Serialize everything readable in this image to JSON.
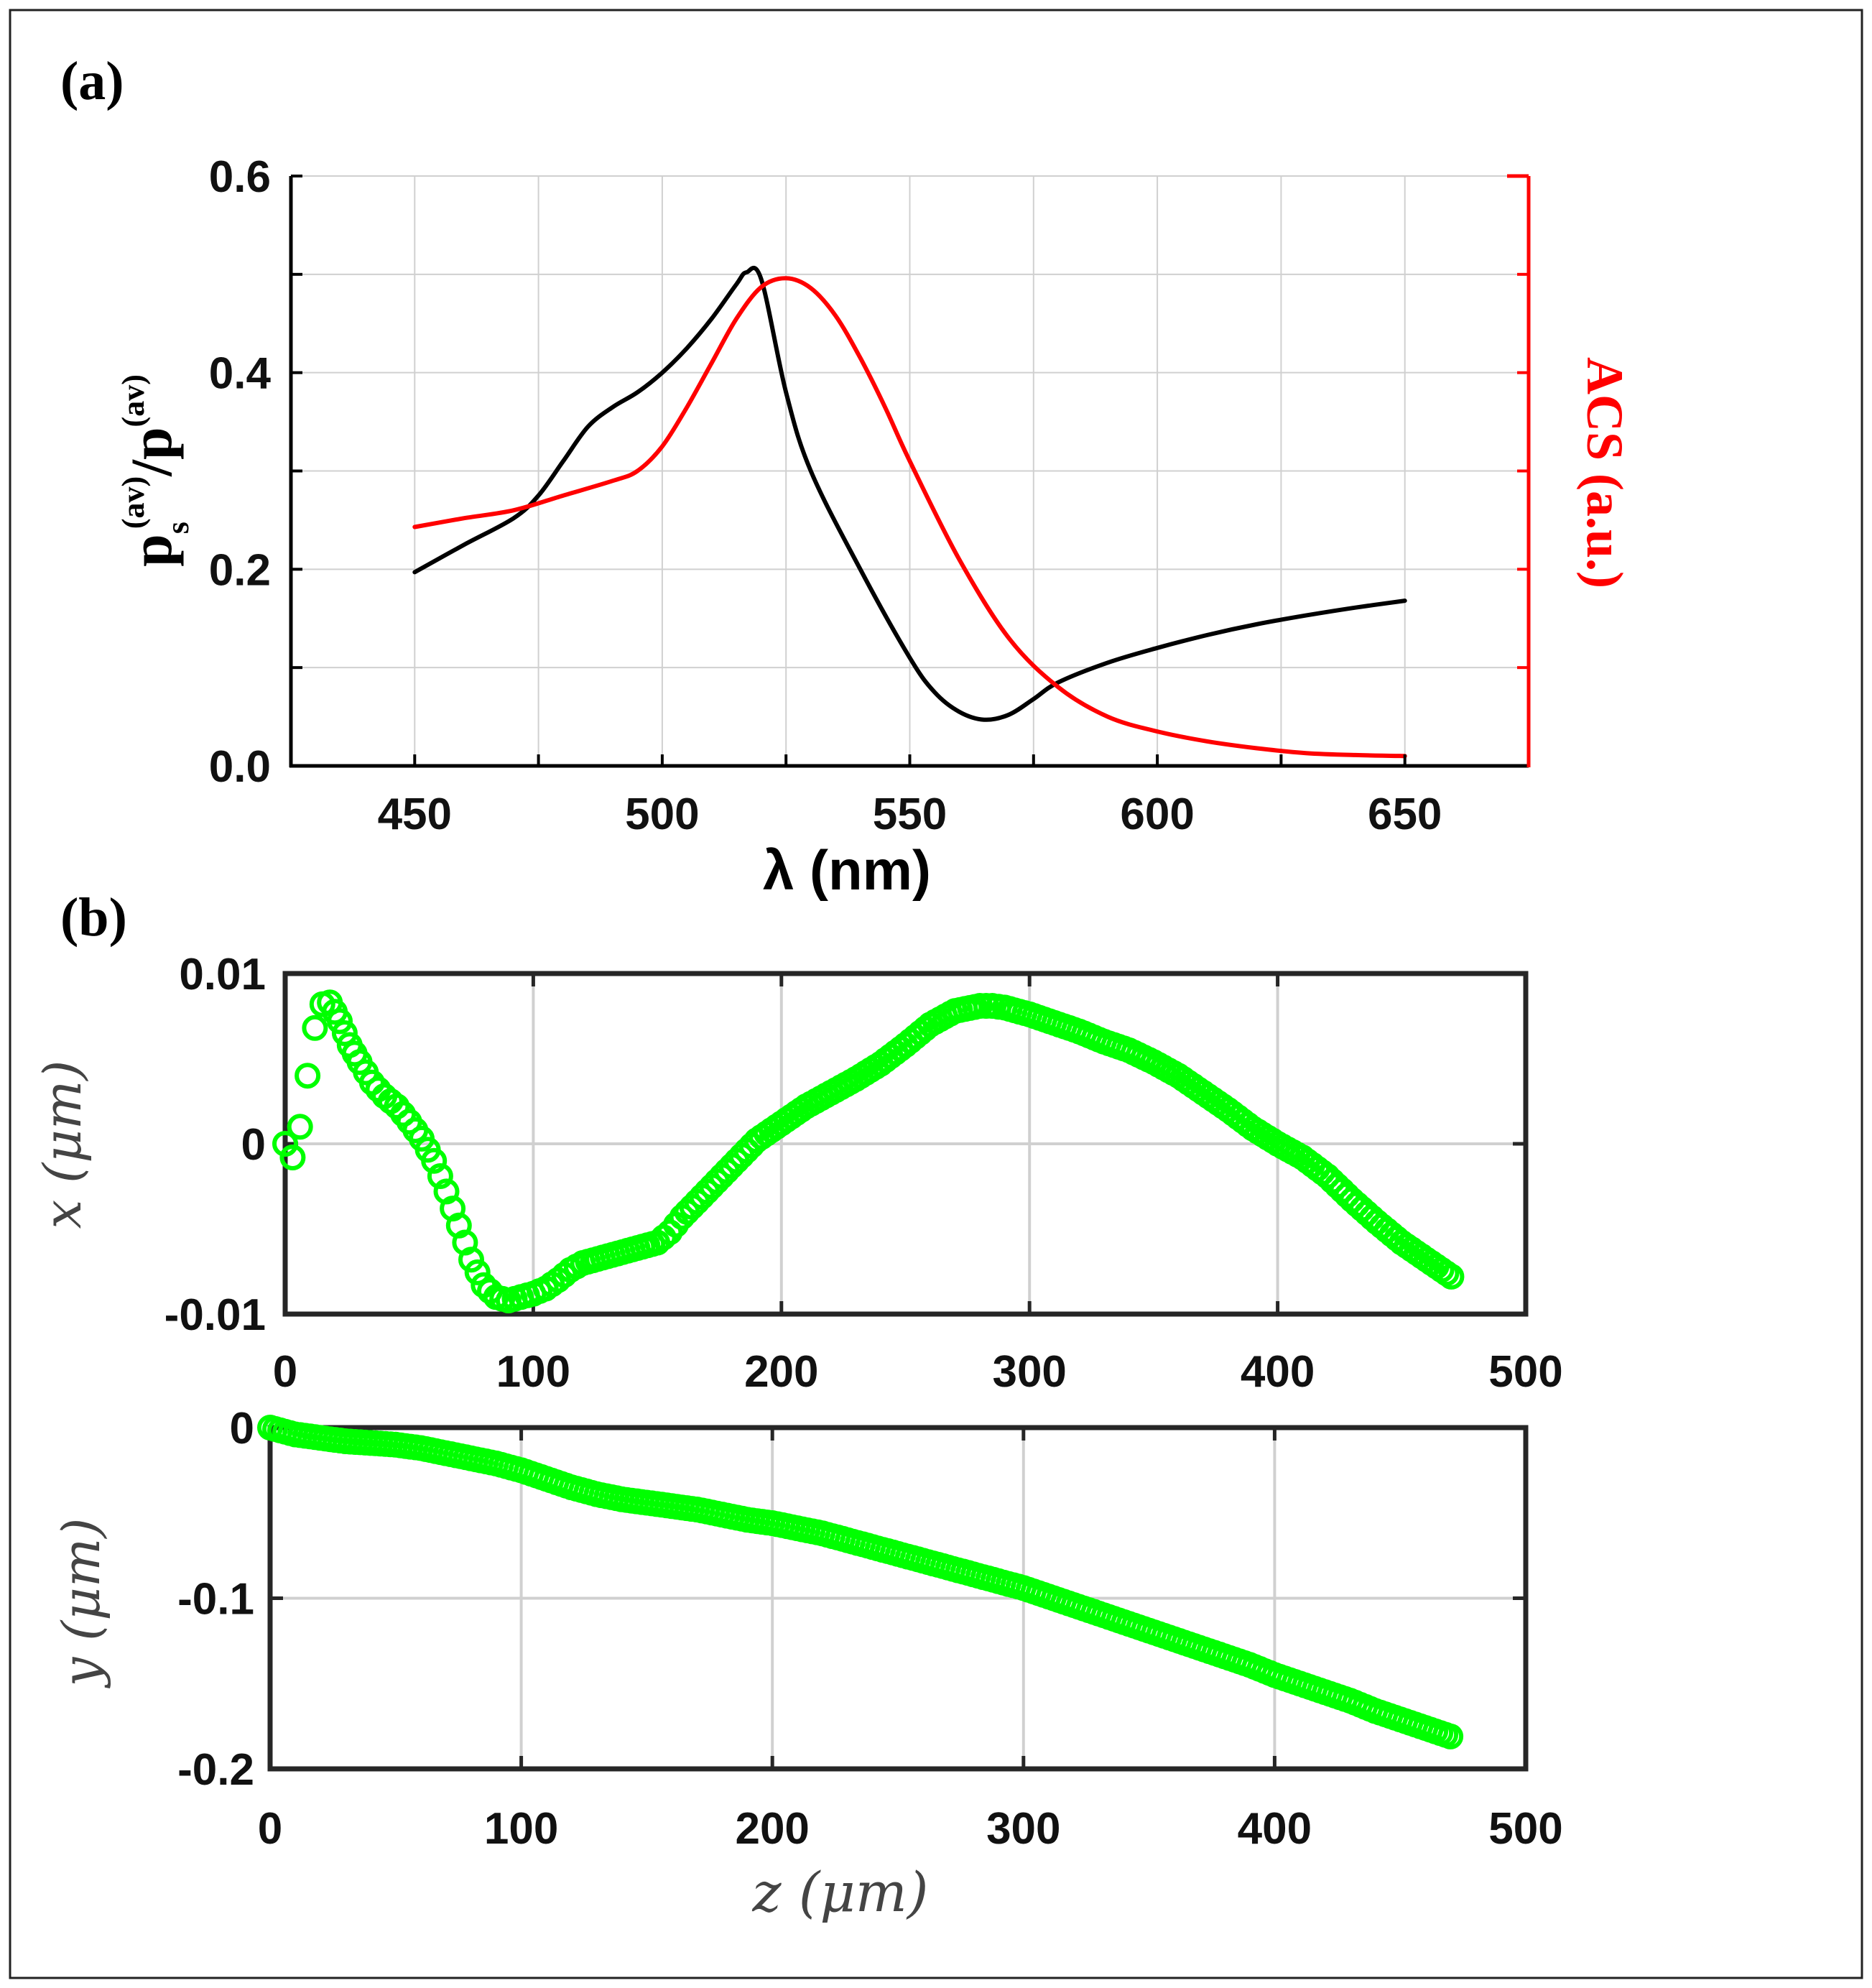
{
  "figure": {
    "label_a": "(a)",
    "label_b": "(b)"
  },
  "colors": {
    "black_curve": "#000000",
    "acs": "#ff0000",
    "marker": "#00ff00",
    "grid": "#d0d0d0",
    "axes_gray": "#262626"
  },
  "chart_data": [
    {
      "id": "a",
      "type": "line",
      "title": "",
      "xlabel": "λ (nm)",
      "ylabel_left": {
        "base": "p",
        "sub": "s",
        "sup1": "(av)",
        "mid": "/p",
        "sup2": "(av)"
      },
      "ylabel_right": "ACS (a.u.)",
      "xlim": [
        425,
        675
      ],
      "ylim": [
        0,
        0.6
      ],
      "xticks": [
        450,
        500,
        550,
        600,
        650
      ],
      "xtick_labels": [
        "450",
        "500",
        "550",
        "600",
        "650"
      ],
      "yticks": [
        0,
        0.2,
        0.4,
        0.6
      ],
      "ytick_labels": [
        "0.0",
        "0.2",
        "0.4",
        "0.6"
      ],
      "grid": true,
      "series": [
        {
          "name": "ps(av)/p(av)",
          "axis": "left",
          "color": "#000000",
          "x": [
            450,
            460,
            470,
            475,
            480,
            485,
            490,
            495,
            500,
            505,
            510,
            515,
            517,
            520,
            525,
            530,
            540,
            550,
            555,
            560,
            565,
            570,
            575,
            580,
            590,
            600,
            610,
            620,
            630,
            640,
            650
          ],
          "y": [
            0.197,
            0.225,
            0.252,
            0.275,
            0.31,
            0.345,
            0.365,
            0.38,
            0.4,
            0.425,
            0.455,
            0.49,
            0.502,
            0.495,
            0.38,
            0.3,
            0.2,
            0.11,
            0.075,
            0.055,
            0.047,
            0.052,
            0.068,
            0.085,
            0.105,
            0.12,
            0.133,
            0.144,
            0.153,
            0.161,
            0.168
          ]
        },
        {
          "name": "ACS",
          "axis": "right",
          "color": "#ff0000",
          "x": [
            450,
            460,
            470,
            480,
            490,
            495,
            500,
            505,
            510,
            515,
            520,
            525,
            530,
            535,
            540,
            545,
            550,
            560,
            570,
            580,
            590,
            600,
            610,
            620,
            630,
            640,
            650
          ],
          "y": [
            0.243,
            0.252,
            0.26,
            0.275,
            0.29,
            0.3,
            0.325,
            0.365,
            0.41,
            0.455,
            0.487,
            0.496,
            0.486,
            0.458,
            0.415,
            0.365,
            0.31,
            0.21,
            0.13,
            0.08,
            0.05,
            0.035,
            0.025,
            0.018,
            0.013,
            0.011,
            0.01
          ]
        }
      ]
    },
    {
      "id": "b-top",
      "type": "scatter",
      "xlabel": "",
      "ylabel": "x (μm)",
      "xlim": [
        0,
        500
      ],
      "ylim": [
        -0.01,
        0.01
      ],
      "xticks": [
        0,
        100,
        200,
        300,
        400,
        500
      ],
      "xtick_labels": [
        "0",
        "100",
        "200",
        "300",
        "400",
        "500"
      ],
      "yticks": [
        -0.01,
        0,
        0.01
      ],
      "ytick_labels": [
        "-0.01",
        "0",
        "0.01"
      ],
      "grid": true,
      "series": [
        {
          "name": "x(z)",
          "marker": "circle",
          "color": "#00ff00",
          "x": [
            0,
            3,
            6,
            9,
            12,
            15,
            18,
            22,
            26,
            30,
            35,
            40,
            45,
            50,
            55,
            60,
            65,
            70,
            75,
            80,
            85,
            90,
            95,
            100,
            105,
            110,
            115,
            120,
            130,
            140,
            150,
            155,
            160,
            170,
            180,
            190,
            200,
            210,
            220,
            230,
            240,
            250,
            260,
            270,
            280,
            285,
            290,
            300,
            310,
            320,
            330,
            340,
            350,
            360,
            370,
            380,
            390,
            400,
            410,
            420,
            430,
            440,
            450,
            460,
            470
          ],
          "y": [
            0,
            -0.0008,
            0.001,
            0.004,
            0.0068,
            0.0082,
            0.0083,
            0.0072,
            0.0058,
            0.0048,
            0.0036,
            0.0028,
            0.0022,
            0.0013,
            0.0003,
            -0.001,
            -0.0028,
            -0.0048,
            -0.0068,
            -0.0083,
            -0.009,
            -0.0092,
            -0.009,
            -0.0088,
            -0.0085,
            -0.008,
            -0.0074,
            -0.007,
            -0.0066,
            -0.0062,
            -0.0058,
            -0.0052,
            -0.0043,
            -0.0028,
            -0.0013,
            0.0002,
            0.0012,
            0.0022,
            0.003,
            0.0038,
            0.0047,
            0.0058,
            0.007,
            0.0078,
            0.0081,
            0.0081,
            0.008,
            0.0076,
            0.0071,
            0.0066,
            0.006,
            0.0055,
            0.0048,
            0.004,
            0.003,
            0.002,
            0.0009,
            0,
            -0.0008,
            -0.0019,
            -0.0033,
            -0.0046,
            -0.0058,
            -0.0068,
            -0.0078
          ]
        }
      ]
    },
    {
      "id": "b-bottom",
      "type": "scatter",
      "xlabel": "z (μm)",
      "ylabel": "y (μm)",
      "xlim": [
        0,
        500
      ],
      "ylim": [
        -0.2,
        0
      ],
      "xticks": [
        0,
        100,
        200,
        300,
        400,
        500
      ],
      "xtick_labels": [
        "0",
        "100",
        "200",
        "300",
        "400",
        "500"
      ],
      "yticks": [
        -0.2,
        -0.1,
        0
      ],
      "ytick_labels": [
        "-0.2",
        "-0.1",
        "0"
      ],
      "grid": true,
      "series": [
        {
          "name": "y(z)",
          "marker": "circle",
          "color": "#00ff00",
          "x": [
            0,
            10,
            20,
            30,
            40,
            50,
            60,
            70,
            80,
            90,
            100,
            110,
            120,
            130,
            140,
            150,
            160,
            170,
            180,
            190,
            200,
            210,
            220,
            230,
            240,
            250,
            260,
            270,
            280,
            290,
            300,
            310,
            320,
            330,
            340,
            350,
            360,
            370,
            380,
            390,
            400,
            410,
            420,
            430,
            440,
            450,
            460,
            470
          ],
          "y": [
            0,
            -0.004,
            -0.006,
            -0.008,
            -0.009,
            -0.01,
            -0.012,
            -0.015,
            -0.018,
            -0.021,
            -0.025,
            -0.03,
            -0.035,
            -0.039,
            -0.042,
            -0.044,
            -0.046,
            -0.048,
            -0.051,
            -0.054,
            -0.056,
            -0.059,
            -0.062,
            -0.066,
            -0.07,
            -0.074,
            -0.078,
            -0.082,
            -0.086,
            -0.09,
            -0.094,
            -0.099,
            -0.104,
            -0.109,
            -0.114,
            -0.119,
            -0.124,
            -0.129,
            -0.134,
            -0.139,
            -0.145,
            -0.15,
            -0.155,
            -0.16,
            -0.166,
            -0.171,
            -0.176,
            -0.181
          ]
        }
      ]
    }
  ]
}
